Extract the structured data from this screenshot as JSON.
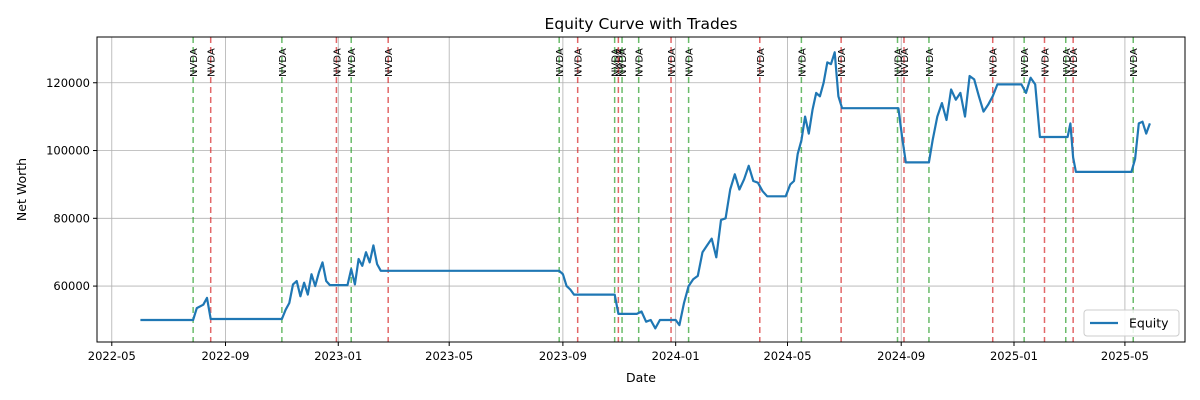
{
  "chart_data": {
    "type": "line",
    "title": "Equity Curve with Trades",
    "xlabel": "Date",
    "ylabel": "Net Worth",
    "xlim": [
      "2022-04-15",
      "2025-07-05"
    ],
    "ylim": [
      43500,
      133500
    ],
    "grid": true,
    "legend": {
      "placement": "bottom-right",
      "entries": [
        "Equity"
      ]
    },
    "x_ticks": [
      "2022-05-01",
      "2022-09-01",
      "2023-01-01",
      "2023-05-01",
      "2023-09-01",
      "2024-01-01",
      "2024-05-01",
      "2024-09-01",
      "2025-01-01",
      "2025-05-01"
    ],
    "x_tick_labels": [
      "2022-05",
      "2022-09",
      "2023-01",
      "2023-05",
      "2023-09",
      "2024-01",
      "2024-05",
      "2024-09",
      "2025-01",
      "2025-05"
    ],
    "y_ticks": [
      60000,
      80000,
      100000,
      120000
    ],
    "y_tick_labels": [
      "60000",
      "80000",
      "100000",
      "120000"
    ],
    "colors": {
      "equity": "#1f77b4",
      "buy": "#2ca02c",
      "sell": "#d62728",
      "grid": "#b0b0b0"
    },
    "series": [
      {
        "name": "Equity",
        "x": [
          "2022-06-01",
          "2022-07-28",
          "2022-08-01",
          "2022-08-08",
          "2022-08-12",
          "2022-08-16",
          "2022-11-01",
          "2022-11-05",
          "2022-11-09",
          "2022-11-13",
          "2022-11-17",
          "2022-11-21",
          "2022-11-25",
          "2022-11-29",
          "2022-12-03",
          "2022-12-07",
          "2022-12-11",
          "2022-12-15",
          "2022-12-19",
          "2022-12-23",
          "2022-12-27",
          "2022-12-30",
          "2023-01-05",
          "2023-01-11",
          "2023-01-15",
          "2023-01-19",
          "2023-01-23",
          "2023-01-27",
          "2023-01-31",
          "2023-02-04",
          "2023-02-08",
          "2023-02-12",
          "2023-02-16",
          "2023-02-20",
          "2023-02-24",
          "2023-02-28",
          "2023-03-04",
          "2023-08-28",
          "2023-09-01",
          "2023-09-05",
          "2023-09-09",
          "2023-09-13",
          "2023-09-17",
          "2023-10-27",
          "2023-10-31",
          "2023-11-10",
          "2023-11-20",
          "2023-11-25",
          "2023-11-30",
          "2023-12-05",
          "2023-12-10",
          "2023-12-15",
          "2023-12-20",
          "2024-01-01",
          "2024-01-05",
          "2024-01-10",
          "2024-01-15",
          "2024-01-20",
          "2024-01-25",
          "2024-01-30",
          "2024-02-04",
          "2024-02-09",
          "2024-02-14",
          "2024-02-19",
          "2024-02-24",
          "2024-02-29",
          "2024-03-05",
          "2024-03-10",
          "2024-03-15",
          "2024-03-20",
          "2024-03-25",
          "2024-03-30",
          "2024-04-04",
          "2024-04-09",
          "2024-04-14",
          "2024-04-19",
          "2024-04-24",
          "2024-04-29",
          "2024-05-04",
          "2024-05-08",
          "2024-05-12",
          "2024-05-16",
          "2024-05-20",
          "2024-05-24",
          "2024-05-28",
          "2024-06-01",
          "2024-06-05",
          "2024-06-09",
          "2024-06-13",
          "2024-06-17",
          "2024-06-21",
          "2024-06-25",
          "2024-06-29",
          "2024-07-03",
          "2024-08-29",
          "2024-09-02",
          "2024-09-06",
          "2024-10-01",
          "2024-10-05",
          "2024-10-10",
          "2024-10-15",
          "2024-10-20",
          "2024-10-25",
          "2024-10-30",
          "2024-11-04",
          "2024-11-09",
          "2024-11-14",
          "2024-11-19",
          "2024-11-24",
          "2024-11-29",
          "2024-12-04",
          "2024-12-09",
          "2024-12-14",
          "2024-12-19",
          "2025-01-09",
          "2025-01-14",
          "2025-01-19",
          "2025-01-24",
          "2025-01-29",
          "2025-02-02",
          "2025-02-28",
          "2025-03-03",
          "2025-03-06",
          "2025-03-09",
          "2025-05-08",
          "2025-05-12",
          "2025-05-16",
          "2025-05-20",
          "2025-05-24",
          "2025-05-28"
        ],
        "values": [
          50000,
          50000,
          53500,
          54500,
          56500,
          50300,
          50300,
          53000,
          55000,
          60500,
          61500,
          57000,
          61000,
          57500,
          63500,
          60000,
          64000,
          67000,
          61500,
          60300,
          60300,
          60300,
          60300,
          60300,
          65000,
          60500,
          68000,
          66000,
          70000,
          67000,
          72000,
          66500,
          64500,
          64500,
          64500,
          64500,
          64500,
          64500,
          63500,
          60000,
          59000,
          57500,
          57500,
          57500,
          51800,
          51800,
          51800,
          52500,
          49500,
          50000,
          47500,
          50000,
          50000,
          50000,
          48500,
          55000,
          60000,
          62000,
          63000,
          70000,
          72000,
          74000,
          68500,
          79500,
          80000,
          88500,
          93000,
          88500,
          91500,
          95500,
          91000,
          90500,
          88000,
          86500,
          86500,
          86500,
          86500,
          86500,
          90000,
          91000,
          99000,
          103000,
          110000,
          105000,
          112000,
          117000,
          116000,
          120000,
          126000,
          125500,
          129000,
          116000,
          112500,
          112500,
          112500,
          104000,
          96500,
          96500,
          103000,
          110000,
          114000,
          109000,
          118000,
          115000,
          117000,
          110000,
          122000,
          121000,
          116000,
          111500,
          113500,
          116000,
          119500,
          119500,
          119500,
          117000,
          121500,
          119500,
          104000,
          104000,
          104000,
          108000,
          98000,
          93700,
          93700,
          97500,
          108000,
          108500,
          105000,
          108000
        ]
      }
    ],
    "trades": [
      {
        "date": "2022-07-28",
        "side": "buy",
        "label": "NVDA"
      },
      {
        "date": "2022-08-16",
        "side": "sell",
        "label": "NVDA"
      },
      {
        "date": "2022-11-01",
        "side": "buy",
        "label": "NVDA"
      },
      {
        "date": "2022-12-30",
        "side": "sell",
        "label": "NVDA"
      },
      {
        "date": "2023-01-15",
        "side": "buy",
        "label": "NVDA"
      },
      {
        "date": "2023-02-24",
        "side": "sell",
        "label": "NVDA"
      },
      {
        "date": "2023-08-28",
        "side": "buy",
        "label": "NVDA"
      },
      {
        "date": "2023-09-17",
        "side": "sell",
        "label": "NVDA"
      },
      {
        "date": "2023-10-27",
        "side": "buy",
        "label": "NVDA"
      },
      {
        "date": "2023-10-31",
        "side": "sell",
        "label": "NVDA"
      },
      {
        "date": "2023-11-04",
        "side": "buy",
        "label": "NVDA"
      },
      {
        "date": "2023-11-22",
        "side": "buy",
        "label": "NVDA"
      },
      {
        "date": "2023-12-27",
        "side": "sell",
        "label": "NVDA"
      },
      {
        "date": "2024-01-15",
        "side": "buy",
        "label": "NVDA"
      },
      {
        "date": "2024-04-01",
        "side": "sell",
        "label": "NVDA"
      },
      {
        "date": "2024-05-16",
        "side": "buy",
        "label": "NVDA"
      },
      {
        "date": "2024-06-28",
        "side": "sell",
        "label": "NVDA"
      },
      {
        "date": "2024-08-28",
        "side": "buy",
        "label": "NVDA"
      },
      {
        "date": "2024-09-04",
        "side": "sell",
        "label": "NVDA"
      },
      {
        "date": "2024-10-01",
        "side": "buy",
        "label": "NVDA"
      },
      {
        "date": "2024-12-09",
        "side": "sell",
        "label": "NVDA"
      },
      {
        "date": "2025-01-12",
        "side": "buy",
        "label": "NVDA"
      },
      {
        "date": "2025-02-03",
        "side": "sell",
        "label": "NVDA"
      },
      {
        "date": "2025-02-26",
        "side": "buy",
        "label": "NVDA"
      },
      {
        "date": "2025-03-06",
        "side": "sell",
        "label": "NVDA"
      },
      {
        "date": "2025-05-10",
        "side": "buy",
        "label": "NVDA"
      }
    ]
  }
}
